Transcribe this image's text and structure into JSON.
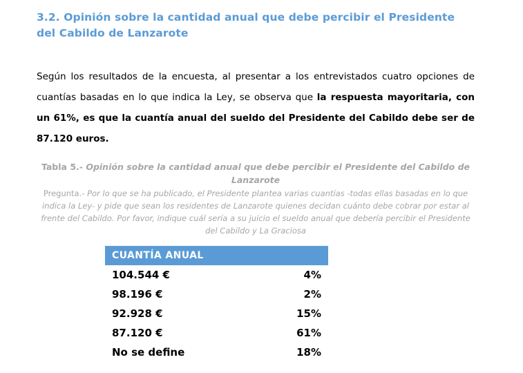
{
  "document": {
    "heading": "3.2. Opinión sobre la cantidad anual que debe percibir el Presidente del Cabildo de Lanzarote",
    "paragraph_normal": "Según los resultados de la encuesta, al presentar a los entrevistados cuatro opciones de cuantías basadas en lo que indica la Ley, se observa que ",
    "paragraph_bold": "la respuesta mayoritaria, con un 61%, es que la cuantía anual del sueldo del Presidente del Cabildo debe ser de 87.120 euros.",
    "caption_label": "Tabla 5.- ",
    "caption_title": "Opinión sobre la cantidad anual que debe percibir el Presidente del Cabildo de Lanzarote",
    "question_label": "Pregunta.- ",
    "question_text": "Por lo que se ha publicado, el Presidente plantea varias cuantías -todas ellas basadas en lo que indica la Ley- y pide que sean los residentes de Lanzarote quienes decidan cuánto debe cobrar por estar al frente del Cabildo. Por favor, indique cuál sería a su juicio el sueldo anual que debería percibir el Presidente del Cabildo y La Graciosa"
  },
  "table": {
    "header": "CUANTÍA ANUAL",
    "rows": [
      {
        "label": "104.544 €",
        "value": "4%"
      },
      {
        "label": "98.196 €",
        "value": "2%"
      },
      {
        "label": "92.928 €",
        "value": "15%"
      },
      {
        "label": "87.120 €",
        "value": "61%"
      },
      {
        "label": "No se define",
        "value": "18%"
      }
    ]
  },
  "colors": {
    "accent_blue": "#5B9BD5",
    "caption_gray": "#A6A6A6",
    "header_text": "#FFFFFF",
    "body_text": "#000000"
  }
}
